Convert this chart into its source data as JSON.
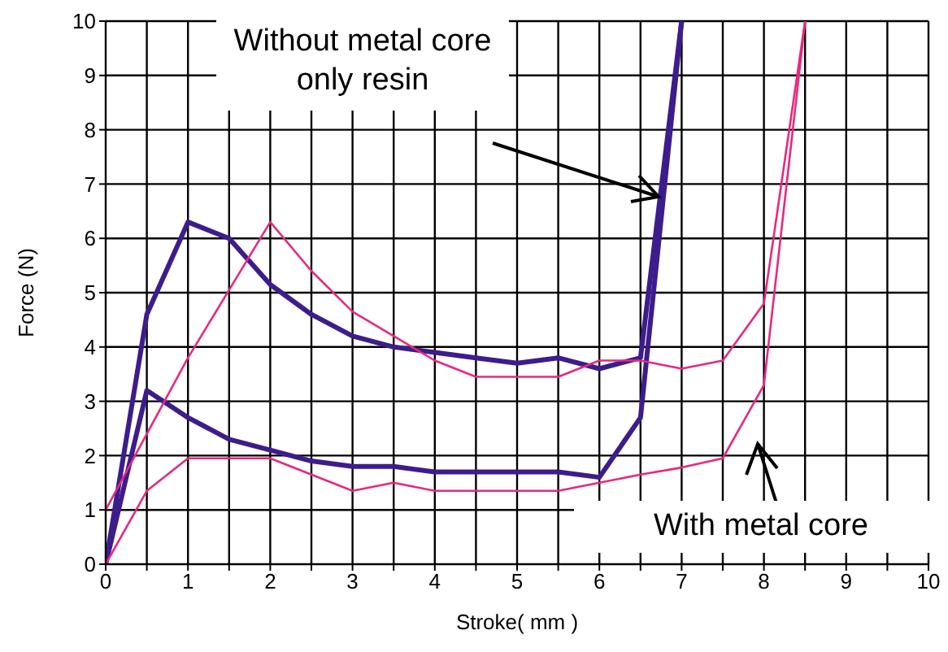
{
  "chart_data": {
    "type": "line",
    "xlabel": "Stroke( mm )",
    "ylabel": "Force (N)",
    "xlim": [
      0,
      10
    ],
    "ylim": [
      0,
      10
    ],
    "xticks": [
      0,
      {
        "value": 0.5,
        "label": null
      },
      1,
      {
        "value": 1.5,
        "label": null
      },
      2,
      {
        "value": 2.5,
        "label": null
      },
      3,
      {
        "value": 3.5,
        "label": null
      },
      4,
      {
        "value": 4.5,
        "label": null
      },
      5,
      {
        "value": 5.5,
        "label": null
      },
      6,
      {
        "value": 6.5,
        "label": null
      },
      7,
      {
        "value": 7.5,
        "label": null
      },
      8,
      {
        "value": 8.5,
        "label": null
      },
      9,
      {
        "value": 9.5,
        "label": null
      },
      10
    ],
    "yticks": [
      0,
      1,
      2,
      3,
      4,
      5,
      6,
      7,
      8,
      9,
      10
    ],
    "grid": true,
    "marker": "none",
    "line_style": "solid",
    "legend": false,
    "series": [
      {
        "color": "#3d1c8c",
        "x": [
          0,
          0.5,
          1,
          1.5,
          2,
          2.5,
          3,
          3.5,
          4,
          4.5,
          5,
          5.5,
          6,
          6.5,
          7
        ],
        "values": [
          0,
          4.6,
          6.3,
          6.0,
          5.15,
          4.6,
          4.2,
          4.0,
          3.9,
          3.8,
          3.7,
          3.8,
          3.6,
          3.8,
          10
        ]
      },
      {
        "color": "#3d1c8c",
        "x": [
          0,
          0.5,
          1,
          1.5,
          2,
          2.5,
          3,
          3.5,
          4,
          4.5,
          5,
          5.5,
          6,
          6.5,
          7
        ],
        "values": [
          0,
          3.2,
          2.7,
          2.3,
          2.1,
          1.9,
          1.8,
          1.8,
          1.7,
          1.7,
          1.7,
          1.7,
          1.6,
          2.7,
          10
        ]
      },
      {
        "color": "#e8287f",
        "x": [
          0,
          1,
          2,
          2.5,
          3,
          3.5,
          4,
          4.5,
          5,
          5.5,
          6,
          6.5,
          7,
          7.5,
          8,
          8.5
        ],
        "values": [
          1.0,
          3.8,
          6.3,
          5.4,
          4.65,
          4.2,
          3.75,
          3.45,
          3.45,
          3.45,
          3.75,
          3.75,
          3.6,
          3.75,
          4.8,
          10
        ]
      },
      {
        "color": "#e8287f",
        "x": [
          0,
          0.5,
          1,
          1.5,
          2,
          3,
          3.5,
          4,
          4.5,
          5,
          5.5,
          6,
          6.5,
          7,
          7.5,
          8,
          8.5
        ],
        "values": [
          0,
          1.35,
          1.95,
          1.95,
          1.95,
          1.35,
          1.5,
          1.35,
          1.35,
          1.35,
          1.35,
          1.5,
          1.65,
          1.78,
          1.95,
          3.3,
          10
        ]
      }
    ],
    "annotations": [
      "Without metal core\nonly resin",
      "With metal core"
    ]
  }
}
